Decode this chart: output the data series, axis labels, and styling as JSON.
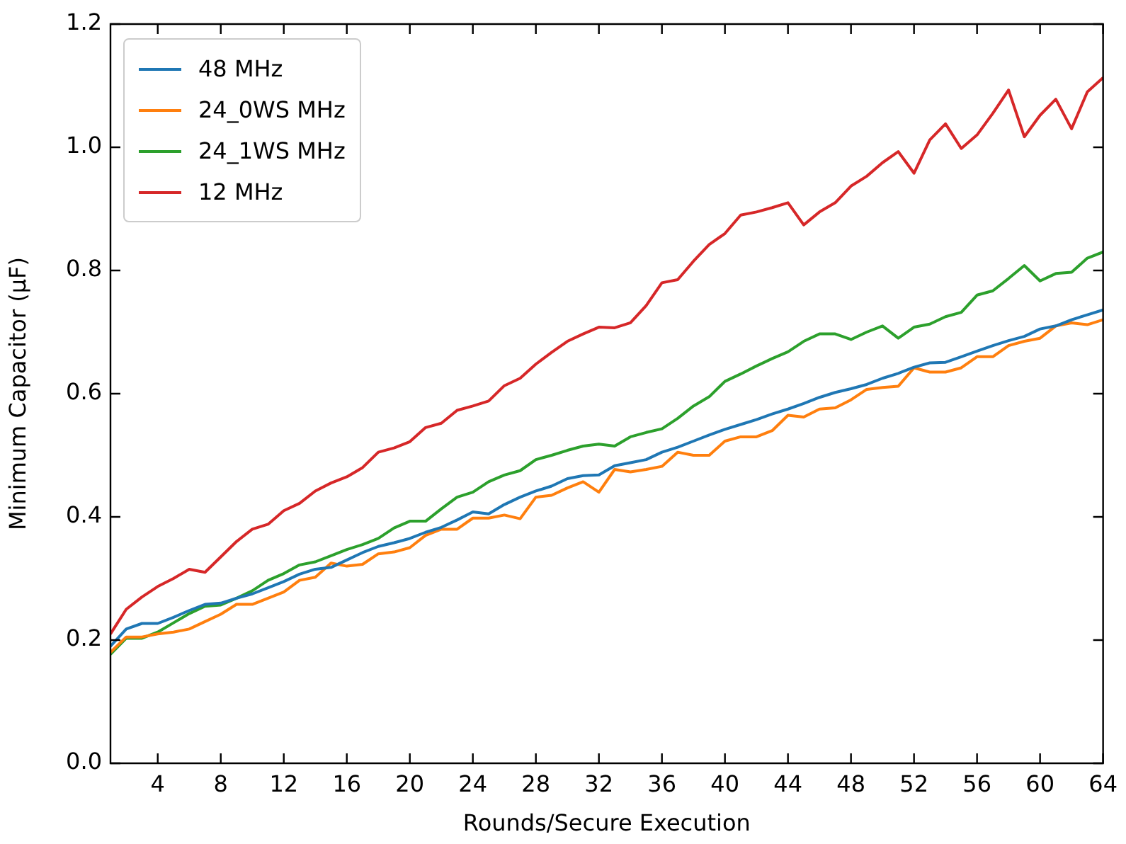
{
  "chart_data": {
    "type": "line",
    "xlabel": "Rounds/Secure Execution",
    "ylabel": "Minimum Capacitor (µF)",
    "x": [
      1,
      2,
      3,
      4,
      5,
      6,
      7,
      8,
      9,
      10,
      11,
      12,
      13,
      14,
      15,
      16,
      17,
      18,
      19,
      20,
      21,
      22,
      23,
      24,
      25,
      26,
      27,
      28,
      29,
      30,
      31,
      32,
      33,
      34,
      35,
      36,
      37,
      38,
      39,
      40,
      41,
      42,
      43,
      44,
      45,
      46,
      47,
      48,
      49,
      50,
      51,
      52,
      53,
      54,
      55,
      56,
      57,
      58,
      59,
      60,
      61,
      62,
      63,
      64
    ],
    "series": [
      {
        "name": "48 MHz",
        "color": "#1f77b4",
        "values": [
          0.19,
          0.218,
          0.227,
          0.227,
          0.237,
          0.248,
          0.258,
          0.26,
          0.268,
          0.275,
          0.285,
          0.295,
          0.307,
          0.315,
          0.318,
          0.33,
          0.342,
          0.352,
          0.358,
          0.365,
          0.375,
          0.383,
          0.395,
          0.408,
          0.405,
          0.42,
          0.432,
          0.442,
          0.45,
          0.462,
          0.467,
          0.468,
          0.483,
          0.488,
          0.493,
          0.505,
          0.513,
          0.523,
          0.533,
          0.542,
          0.55,
          0.558,
          0.567,
          0.575,
          0.584,
          0.594,
          0.602,
          0.608,
          0.615,
          0.625,
          0.633,
          0.643,
          0.65,
          0.651,
          0.66,
          0.669,
          0.678,
          0.686,
          0.693,
          0.705,
          0.71,
          0.72,
          0.728,
          0.736
        ]
      },
      {
        "name": "24_0WS MHz",
        "color": "#ff7f0e",
        "values": [
          0.18,
          0.205,
          0.205,
          0.21,
          0.213,
          0.218,
          0.23,
          0.242,
          0.258,
          0.258,
          0.268,
          0.278,
          0.297,
          0.302,
          0.325,
          0.32,
          0.323,
          0.34,
          0.343,
          0.35,
          0.37,
          0.38,
          0.38,
          0.398,
          0.398,
          0.403,
          0.397,
          0.432,
          0.435,
          0.447,
          0.457,
          0.44,
          0.477,
          0.473,
          0.477,
          0.482,
          0.505,
          0.5,
          0.5,
          0.523,
          0.53,
          0.53,
          0.54,
          0.565,
          0.562,
          0.575,
          0.577,
          0.59,
          0.607,
          0.61,
          0.612,
          0.642,
          0.635,
          0.635,
          0.642,
          0.66,
          0.66,
          0.678,
          0.685,
          0.69,
          0.71,
          0.715,
          0.712,
          0.72
        ]
      },
      {
        "name": "24_1WS MHz",
        "color": "#2ca02c",
        "values": [
          0.177,
          0.203,
          0.203,
          0.213,
          0.228,
          0.243,
          0.255,
          0.257,
          0.268,
          0.28,
          0.297,
          0.308,
          0.322,
          0.327,
          0.337,
          0.347,
          0.355,
          0.365,
          0.382,
          0.393,
          0.393,
          0.413,
          0.432,
          0.44,
          0.457,
          0.468,
          0.475,
          0.493,
          0.5,
          0.508,
          0.515,
          0.518,
          0.515,
          0.53,
          0.537,
          0.543,
          0.56,
          0.58,
          0.595,
          0.62,
          0.632,
          0.645,
          0.657,
          0.668,
          0.685,
          0.697,
          0.697,
          0.688,
          0.7,
          0.71,
          0.69,
          0.708,
          0.713,
          0.725,
          0.732,
          0.76,
          0.767,
          0.787,
          0.808,
          0.783,
          0.795,
          0.797,
          0.82,
          0.83
        ]
      },
      {
        "name": "12 MHz",
        "color": "#d62728",
        "values": [
          0.21,
          0.25,
          0.27,
          0.287,
          0.3,
          0.315,
          0.31,
          0.335,
          0.36,
          0.38,
          0.388,
          0.41,
          0.422,
          0.442,
          0.455,
          0.465,
          0.48,
          0.505,
          0.512,
          0.522,
          0.545,
          0.552,
          0.573,
          0.58,
          0.588,
          0.613,
          0.625,
          0.648,
          0.667,
          0.685,
          0.697,
          0.708,
          0.707,
          0.715,
          0.743,
          0.78,
          0.785,
          0.815,
          0.842,
          0.86,
          0.89,
          0.895,
          0.902,
          0.91,
          0.874,
          0.895,
          0.91,
          0.937,
          0.953,
          0.975,
          0.993,
          0.958,
          1.012,
          1.038,
          0.998,
          1.02,
          1.055,
          1.093,
          1.017,
          1.052,
          1.078,
          1.03,
          1.09,
          1.113
        ]
      }
    ],
    "xlim": [
      1,
      64
    ],
    "xticks": [
      4,
      8,
      12,
      16,
      20,
      24,
      28,
      32,
      36,
      40,
      44,
      48,
      52,
      56,
      60,
      64
    ],
    "ylim": [
      0,
      1.2
    ],
    "yticks": [
      {
        "value": 0,
        "label": "0.0"
      },
      0.2,
      0.4,
      0.6,
      0.8,
      {
        "value": 1,
        "label": "1.0"
      },
      1.2
    ],
    "legend": "top left",
    "marker": "none",
    "line_style": "solid"
  }
}
